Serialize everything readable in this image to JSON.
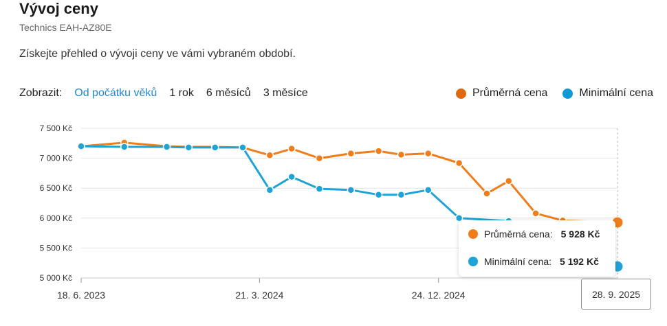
{
  "header": {
    "title": "Vývoj ceny",
    "subtitle": "Technics EAH-AZ80E",
    "description": "Získejte přehled o vývoji ceny ve vámi vybraném období."
  },
  "filters": {
    "label": "Zobrazit:",
    "options": [
      "Od počátku věků",
      "1 rok",
      "6 měsíců",
      "3 měsíce"
    ],
    "active": "Od počátku věků"
  },
  "colors": {
    "average": "#ef7d1a",
    "minimum": "#1ea3d6",
    "active_filter": "#1e88d0"
  },
  "chart_data": {
    "type": "line",
    "x": [
      "2023-06-18",
      "2023-08-24",
      "2023-10-29",
      "2023-12-02",
      "2024-01-12",
      "2024-02-24",
      "2024-04-06",
      "2024-05-10",
      "2024-06-22",
      "2024-08-10",
      "2024-09-22",
      "2024-10-27",
      "2024-12-08",
      "2025-01-25",
      "2025-03-09",
      "2025-04-12",
      "2025-05-24",
      "2025-07-05",
      "2025-09-28"
    ],
    "series": [
      {
        "name": "Průměrná cena",
        "color": "#ef7d1a",
        "values": [
          7200,
          7260,
          7200,
          7190,
          7190,
          7180,
          7050,
          7160,
          7000,
          7080,
          7120,
          7060,
          7080,
          6920,
          6410,
          6620,
          6080,
          5960,
          5928
        ]
      },
      {
        "name": "Minimální cena",
        "color": "#1ea3d6",
        "values": [
          7200,
          7190,
          7190,
          7180,
          7180,
          7180,
          6470,
          6690,
          6490,
          6470,
          6390,
          6390,
          6470,
          6000,
          null,
          5950,
          null,
          null,
          5192
        ]
      }
    ],
    "ylim": [
      5000,
      7500
    ],
    "yticks": [
      "5 000 Kč",
      "5 500 Kč",
      "6 000 Kč",
      "6 500 Kč",
      "7 000 Kč",
      "7 500 Kč"
    ],
    "ytick_values": [
      5000,
      5500,
      6000,
      6500,
      7000,
      7500
    ],
    "xticks": [
      "18. 6. 2023",
      "21. 3. 2024",
      "24. 12. 2024"
    ],
    "xtick_values": [
      "2023-06-18",
      "2024-03-21",
      "2024-12-24"
    ],
    "grid": true,
    "legend": "top-right",
    "tooltip": {
      "date": "28. 9. 2025",
      "rows": [
        {
          "label": "Průměrná cena:",
          "value": "5 928 Kč"
        },
        {
          "label": "Minimální cena:",
          "value": "5 192 Kč"
        }
      ]
    }
  }
}
